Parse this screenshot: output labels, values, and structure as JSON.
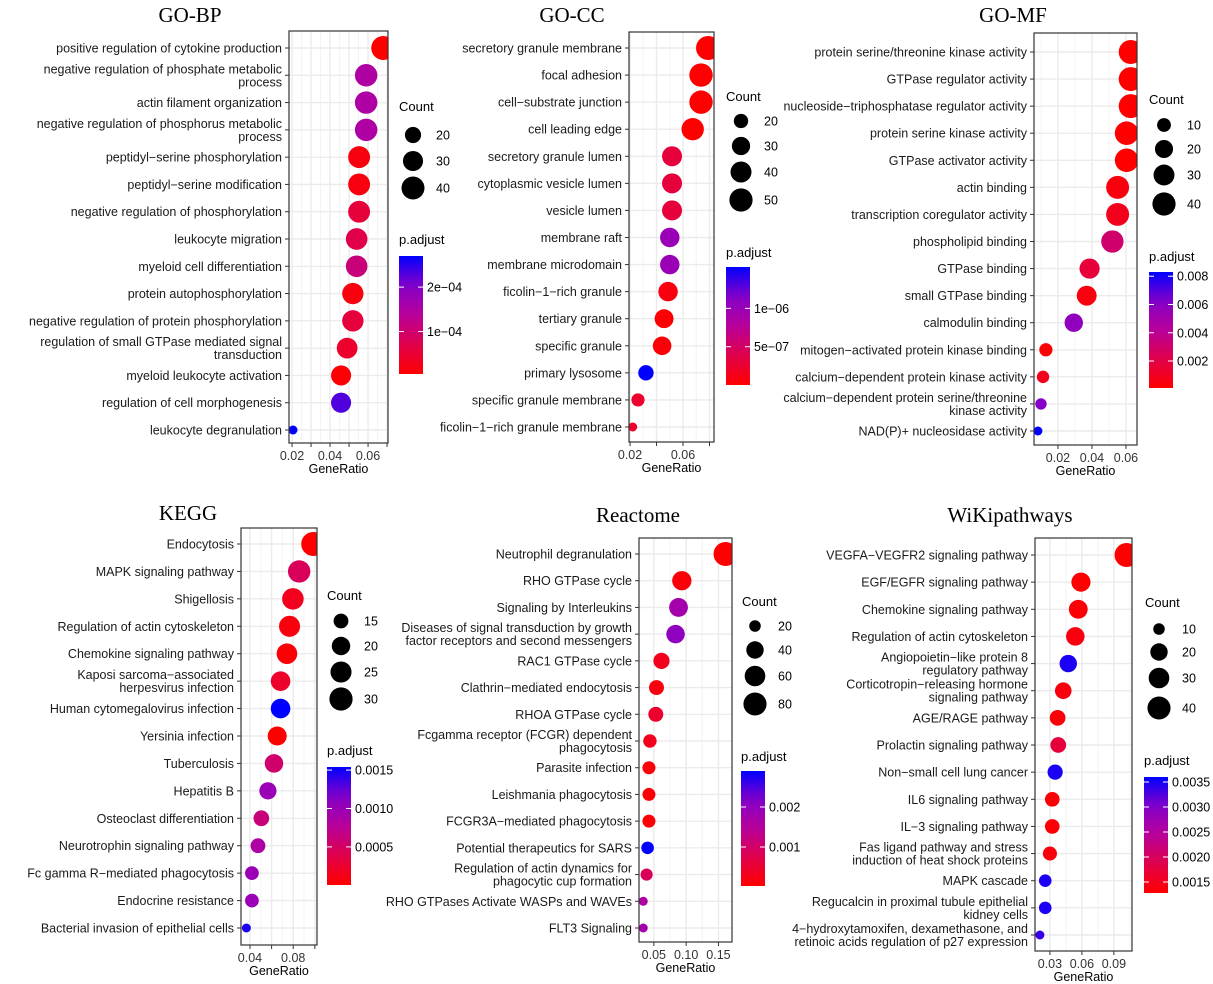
{
  "colors": {
    "low": "#FF0000",
    "high": "#0000FF",
    "grid": "#EBEBEB",
    "border": "#333333"
  },
  "chart_data": [
    {
      "type": "scatter",
      "title": "GO-BP",
      "xlabel": "GeneRatio",
      "xlim": [
        0.0184,
        0.0705
      ],
      "xticks": [
        0.02,
        0.03,
        0.04,
        0.05,
        0.06,
        0.07
      ],
      "xticklabels": [
        "0.02",
        "",
        "0.04",
        "",
        "0.06",
        ""
      ],
      "grid": true,
      "legend_placement": "right",
      "size_legend": {
        "title": "Count",
        "breaks": [
          20,
          30,
          40
        ]
      },
      "color_legend": {
        "title": "p.adjust",
        "range": [
          4.5e-06,
          0.00027
        ],
        "breaks": [
          0.0001,
          0.0002
        ],
        "labels": [
          "1e−04",
          "2e−04"
        ]
      },
      "points": [
        {
          "term": "positive regulation of cytokine production",
          "x": 0.068,
          "count": 44,
          "p": 4.5e-06
        },
        {
          "term": "negative regulation of phosphate metabolic\nprocess",
          "x": 0.059,
          "count": 38,
          "p": 0.00015
        },
        {
          "term": "actin filament organization",
          "x": 0.059,
          "count": 38,
          "p": 0.00015
        },
        {
          "term": "negative regulation of phosphorus metabolic\nprocess",
          "x": 0.059,
          "count": 38,
          "p": 0.00015
        },
        {
          "term": "peptidyl−serine phosphorylation",
          "x": 0.0553,
          "count": 36,
          "p": 1.8e-05
        },
        {
          "term": "peptidyl−serine modification",
          "x": 0.0553,
          "count": 36,
          "p": 1.8e-05
        },
        {
          "term": "negative regulation of phosphorylation",
          "x": 0.0553,
          "count": 36,
          "p": 5.8e-05
        },
        {
          "term": "leukocyte migration",
          "x": 0.054,
          "count": 35,
          "p": 7e-05
        },
        {
          "term": "myeloid cell differentiation",
          "x": 0.054,
          "count": 35,
          "p": 0.00011
        },
        {
          "term": "protein autophosphorylation",
          "x": 0.052,
          "count": 34,
          "p": 1.8e-05
        },
        {
          "term": "negative regulation of protein phosphorylation",
          "x": 0.052,
          "count": 34,
          "p": 5.8e-05
        },
        {
          "term": "regulation of small GTPase mediated signal\ntransduction",
          "x": 0.049,
          "count": 32,
          "p": 4.4e-05
        },
        {
          "term": "myeloid leukocyte activation",
          "x": 0.0458,
          "count": 30,
          "p": 1e-05
        },
        {
          "term": "regulation of cell morphogenesis",
          "x": 0.0458,
          "count": 30,
          "p": 0.00023
        },
        {
          "term": "leukocyte degranulation",
          "x": 0.0205,
          "count": 13,
          "p": 0.00027
        }
      ]
    },
    {
      "type": "scatter",
      "title": "GO-CC",
      "xlabel": "GeneRatio",
      "xlim": [
        0.0192,
        0.0834
      ],
      "xticks": [
        0.02,
        0.04,
        0.06,
        0.08
      ],
      "xticklabels": [
        "0.02",
        "",
        "0.06",
        ""
      ],
      "grid": true,
      "legend_placement": "right",
      "size_legend": {
        "title": "Count",
        "breaks": [
          20,
          30,
          40,
          50
        ]
      },
      "color_legend": {
        "title": "p.adjust",
        "range": [
          5e-10,
          1.54e-06
        ],
        "breaks": [
          5e-07,
          1e-06
        ],
        "labels": [
          "5e−07",
          "1e−06"
        ]
      },
      "points": [
        {
          "term": "secretory granule membrane",
          "x": 0.0789,
          "count": 54,
          "p": 5e-10
        },
        {
          "term": "focal adhesion",
          "x": 0.0736,
          "count": 51,
          "p": 1e-09
        },
        {
          "term": "cell−substrate junction",
          "x": 0.0736,
          "count": 51,
          "p": 1e-09
        },
        {
          "term": "cell leading edge",
          "x": 0.0673,
          "count": 46,
          "p": 2e-09
        },
        {
          "term": "secretory granule lumen",
          "x": 0.0517,
          "count": 36,
          "p": 3.1e-07
        },
        {
          "term": "cytoplasmic vesicle lumen",
          "x": 0.0517,
          "count": 36,
          "p": 3.1e-07
        },
        {
          "term": "vesicle lumen",
          "x": 0.0517,
          "count": 36,
          "p": 3.1e-07
        },
        {
          "term": "membrane raft",
          "x": 0.05,
          "count": 34,
          "p": 1e-06
        },
        {
          "term": "membrane microdomain",
          "x": 0.05,
          "count": 34,
          "p": 1e-06
        },
        {
          "term": "ficolin−1−rich granule",
          "x": 0.0487,
          "count": 34,
          "p": 7.7e-08
        },
        {
          "term": "tertiary granule",
          "x": 0.0457,
          "count": 32,
          "p": 3e-08
        },
        {
          "term": "specific granule",
          "x": 0.0442,
          "count": 31,
          "p": 4.6e-08
        },
        {
          "term": "primary lysosome",
          "x": 0.032,
          "count": 22,
          "p": 1.54e-06
        },
        {
          "term": "specific granule membrane",
          "x": 0.026,
          "count": 18,
          "p": 2.3e-07
        },
        {
          "term": "ficolin−1−rich granule membrane",
          "x": 0.022,
          "count": 15,
          "p": 2.3e-07
        }
      ]
    },
    {
      "type": "scatter",
      "title": "GO-MF",
      "xlabel": "GeneRatio",
      "xlim": [
        0.0059,
        0.0665
      ],
      "xticks": [
        0.02,
        0.04,
        0.06
      ],
      "xticklabels": [
        "0.02",
        "0.04",
        "0.06"
      ],
      "grid": true,
      "legend_placement": "right",
      "size_legend": {
        "title": "Count",
        "breaks": [
          10,
          20,
          30,
          40
        ]
      },
      "color_legend": {
        "title": "p.adjust",
        "range": [
          9e-05,
          0.0083
        ],
        "breaks": [
          0.002,
          0.004,
          0.006,
          0.008
        ],
        "labels": [
          "0.002",
          "0.004",
          "0.006",
          "0.008"
        ]
      },
      "points": [
        {
          "term": "protein serine/threonine kinase activity",
          "x": 0.0628,
          "count": 44,
          "p": 9e-05
        },
        {
          "term": "GTPase regulator activity",
          "x": 0.0628,
          "count": 44,
          "p": 9e-05
        },
        {
          "term": "nucleoside−triphosphatase regulator activity",
          "x": 0.0628,
          "count": 44,
          "p": 9e-05
        },
        {
          "term": "protein serine kinase activity",
          "x": 0.0604,
          "count": 42,
          "p": 0.0001
        },
        {
          "term": "GTPase activator activity",
          "x": 0.0604,
          "count": 42,
          "p": 0.0001
        },
        {
          "term": "actin binding",
          "x": 0.0551,
          "count": 39,
          "p": 0.0005
        },
        {
          "term": "transcription coregulator activity",
          "x": 0.0551,
          "count": 39,
          "p": 0.0009
        },
        {
          "term": "phospholipid binding",
          "x": 0.052,
          "count": 36,
          "p": 0.003
        },
        {
          "term": "GTPase binding",
          "x": 0.0386,
          "count": 27,
          "p": 0.0017
        },
        {
          "term": "small GTPase binding",
          "x": 0.0369,
          "count": 26,
          "p": 0.0005
        },
        {
          "term": "calmodulin binding",
          "x": 0.0293,
          "count": 21,
          "p": 0.0058
        },
        {
          "term": "mitogen−activated protein kinase binding",
          "x": 0.0129,
          "count": 9,
          "p": 0.00025
        },
        {
          "term": "calcium−dependent protein kinase activity",
          "x": 0.0112,
          "count": 8,
          "p": 0.0009
        },
        {
          "term": "calcium−dependent protein serine/threonine\nkinase activity",
          "x": 0.01,
          "count": 7,
          "p": 0.0062
        },
        {
          "term": "NAD(P)+ nucleosidase activity",
          "x": 0.0082,
          "count": 6,
          "p": 0.0083
        }
      ]
    },
    {
      "type": "scatter",
      "title": "KEGG",
      "xlabel": "GeneRatio",
      "xlim": [
        0.0317,
        0.102
      ],
      "xticks": [
        0.04,
        0.06,
        0.08,
        0.1
      ],
      "xticklabels": [
        "0.04",
        "",
        "0.08",
        ""
      ],
      "grid": true,
      "legend_placement": "right",
      "size_legend": {
        "title": "Count",
        "breaks": [
          15,
          20,
          25,
          30
        ]
      },
      "color_legend": {
        "title": "p.adjust",
        "range": [
          4e-06,
          0.00154
        ],
        "breaks": [
          0.0005,
          0.001,
          0.0015
        ],
        "labels": [
          "0.0005",
          "0.0010",
          "0.0015"
        ]
      },
      "points": [
        {
          "term": "Endocytosis",
          "x": 0.0985,
          "count": 32,
          "p": 4e-06
        },
        {
          "term": "MAPK signaling pathway",
          "x": 0.0855,
          "count": 28,
          "p": 0.00046
        },
        {
          "term": "Shigellosis",
          "x": 0.0797,
          "count": 26,
          "p": 0.00016
        },
        {
          "term": "Regulation of actin cytoskeleton",
          "x": 0.0766,
          "count": 25,
          "p": 8e-05
        },
        {
          "term": "Chemokine signaling pathway",
          "x": 0.0742,
          "count": 24,
          "p": 3.5e-05
        },
        {
          "term": "Kaposi sarcoma−associated\nherpesvirus infection",
          "x": 0.0683,
          "count": 22,
          "p": 0.00023
        },
        {
          "term": "Human cytomegalovirus infection",
          "x": 0.0683,
          "count": 22,
          "p": 0.00154
        },
        {
          "term": "Yersinia infection",
          "x": 0.0652,
          "count": 21,
          "p": 4e-06
        },
        {
          "term": "Tuberculosis",
          "x": 0.0622,
          "count": 20,
          "p": 0.00054
        },
        {
          "term": "Hepatitis B",
          "x": 0.0566,
          "count": 18,
          "p": 0.001
        },
        {
          "term": "Osteoclast differentiation",
          "x": 0.0505,
          "count": 16,
          "p": 0.00062
        },
        {
          "term": "Neurotrophin signaling pathway",
          "x": 0.0474,
          "count": 15,
          "p": 0.00085
        },
        {
          "term": "Fc gamma R−mediated phagocytosis",
          "x": 0.0418,
          "count": 14,
          "p": 0.001
        },
        {
          "term": "Endocrine resistance",
          "x": 0.0418,
          "count": 14,
          "p": 0.001
        },
        {
          "term": "Bacterial invasion of epithelial cells",
          "x": 0.0367,
          "count": 12,
          "p": 0.00146
        }
      ]
    },
    {
      "type": "scatter",
      "title": "Reactome",
      "xlabel": "GeneRatio",
      "xlim": [
        0.027,
        0.171
      ],
      "xticks": [
        0.05,
        0.1,
        0.15
      ],
      "xticklabels": [
        "0.05",
        "0.10",
        "0.15"
      ],
      "grid": true,
      "legend_placement": "right",
      "size_legend": {
        "title": "Count",
        "breaks": [
          20,
          40,
          60,
          80
        ]
      },
      "color_legend": {
        "title": "p.adjust",
        "range": [
          2.5e-05,
          0.0029
        ],
        "breaks": [
          0.001,
          0.002
        ],
        "labels": [
          "0.001",
          "0.002"
        ]
      },
      "points": [
        {
          "term": "Neutrophil degranulation",
          "x": 0.161,
          "count": 88,
          "p": 2.5e-05
        },
        {
          "term": "RHO GTPase cycle",
          "x": 0.0933,
          "count": 51,
          "p": 0.00011
        },
        {
          "term": "Signaling by Interleukins",
          "x": 0.0882,
          "count": 48,
          "p": 0.00175
        },
        {
          "term": "Diseases of signal transduction by growth\nfactor receptors and second messengers",
          "x": 0.0836,
          "count": 46,
          "p": 0.00204
        },
        {
          "term": "RAC1 GTPase cycle",
          "x": 0.0618,
          "count": 34,
          "p": 0.00031
        },
        {
          "term": "Clathrin−mediated endocytosis",
          "x": 0.0541,
          "count": 29,
          "p": 0.00017
        },
        {
          "term": "RHOA GTPase cycle",
          "x": 0.053,
          "count": 29,
          "p": 0.00046
        },
        {
          "term": "Fcgamma receptor (FCGR) dependent\nphagocytosis",
          "x": 0.0439,
          "count": 24,
          "p": 0.00031
        },
        {
          "term": "Parasite infection",
          "x": 0.0424,
          "count": 23,
          "p": 8e-05
        },
        {
          "term": "Leishmania phagocytosis",
          "x": 0.0424,
          "count": 23,
          "p": 8e-05
        },
        {
          "term": "FCGR3A−mediated phagocytosis",
          "x": 0.0424,
          "count": 23,
          "p": 8e-05
        },
        {
          "term": "Potential therapeutics for SARS",
          "x": 0.0403,
          "count": 22,
          "p": 0.0029
        },
        {
          "term": "Regulation of actin dynamics for\nphagocytic cup formation",
          "x": 0.0388,
          "count": 21,
          "p": 0.00088
        },
        {
          "term": "RHO GTPases Activate WASPs and WAVEs",
          "x": 0.0336,
          "count": 18,
          "p": 0.0016
        },
        {
          "term": "FLT3 Signaling",
          "x": 0.0336,
          "count": 18,
          "p": 0.00175
        }
      ]
    },
    {
      "type": "scatter",
      "title": "WiKipathways",
      "xlabel": "GeneRatio",
      "xlim": [
        0.016,
        0.107
      ],
      "xticks": [
        0.03,
        0.06,
        0.09
      ],
      "xticklabels": [
        "0.03",
        "0.06",
        "0.09"
      ],
      "grid": true,
      "legend_placement": "right",
      "size_legend": {
        "title": "Count",
        "breaks": [
          10,
          20,
          30,
          40
        ]
      },
      "color_legend": {
        "title": "p.adjust",
        "range": [
          0.00128,
          0.0036
        ],
        "breaks": [
          0.0015,
          0.002,
          0.0025,
          0.003,
          0.0035
        ],
        "labels": [
          "0.0015",
          "0.0020",
          "0.0025",
          "0.0030",
          "0.0035"
        ]
      },
      "points": [
        {
          "term": "VEGFA−VEGFR2 signaling pathway",
          "x": 0.1019,
          "count": 44,
          "p": 0.00128
        },
        {
          "term": "EGF/EGFR signaling pathway",
          "x": 0.0591,
          "count": 25,
          "p": 0.00129
        },
        {
          "term": "Chemokine signaling pathway",
          "x": 0.0566,
          "count": 24,
          "p": 0.00133
        },
        {
          "term": "Regulation of actin cytoskeleton",
          "x": 0.0538,
          "count": 23,
          "p": 0.0014
        },
        {
          "term": "Angiopoietin−like protein 8\nregulatory pathway",
          "x": 0.0472,
          "count": 20,
          "p": 0.00348
        },
        {
          "term": "Corticotropin−releasing hormone\nsignaling pathway",
          "x": 0.0425,
          "count": 18,
          "p": 0.0014
        },
        {
          "term": "AGE/RAGE pathway",
          "x": 0.0372,
          "count": 16,
          "p": 0.00135
        },
        {
          "term": "Prolactin signaling pathway",
          "x": 0.0378,
          "count": 16,
          "p": 0.00174
        },
        {
          "term": "Non−small cell lung cancer",
          "x": 0.0349,
          "count": 15,
          "p": 0.00348
        },
        {
          "term": "IL6 signaling pathway",
          "x": 0.0322,
          "count": 14,
          "p": 0.00133
        },
        {
          "term": "IL−3 signaling pathway",
          "x": 0.0322,
          "count": 14,
          "p": 0.00133
        },
        {
          "term": "Fas ligand pathway and stress\ninduction of heat shock proteins",
          "x": 0.03,
          "count": 13,
          "p": 0.0014
        },
        {
          "term": "MAPK cascade",
          "x": 0.0256,
          "count": 11,
          "p": 0.00348
        },
        {
          "term": "Regucalcin in proximal tubule epithelial\nkidney cells",
          "x": 0.0256,
          "count": 11,
          "p": 0.00348
        },
        {
          "term": "4−hydroxytamoxifen, dexamethasone, and\nretinoic acids regulation of p27 expression",
          "x": 0.0206,
          "count": 9,
          "p": 0.00337
        }
      ]
    }
  ]
}
